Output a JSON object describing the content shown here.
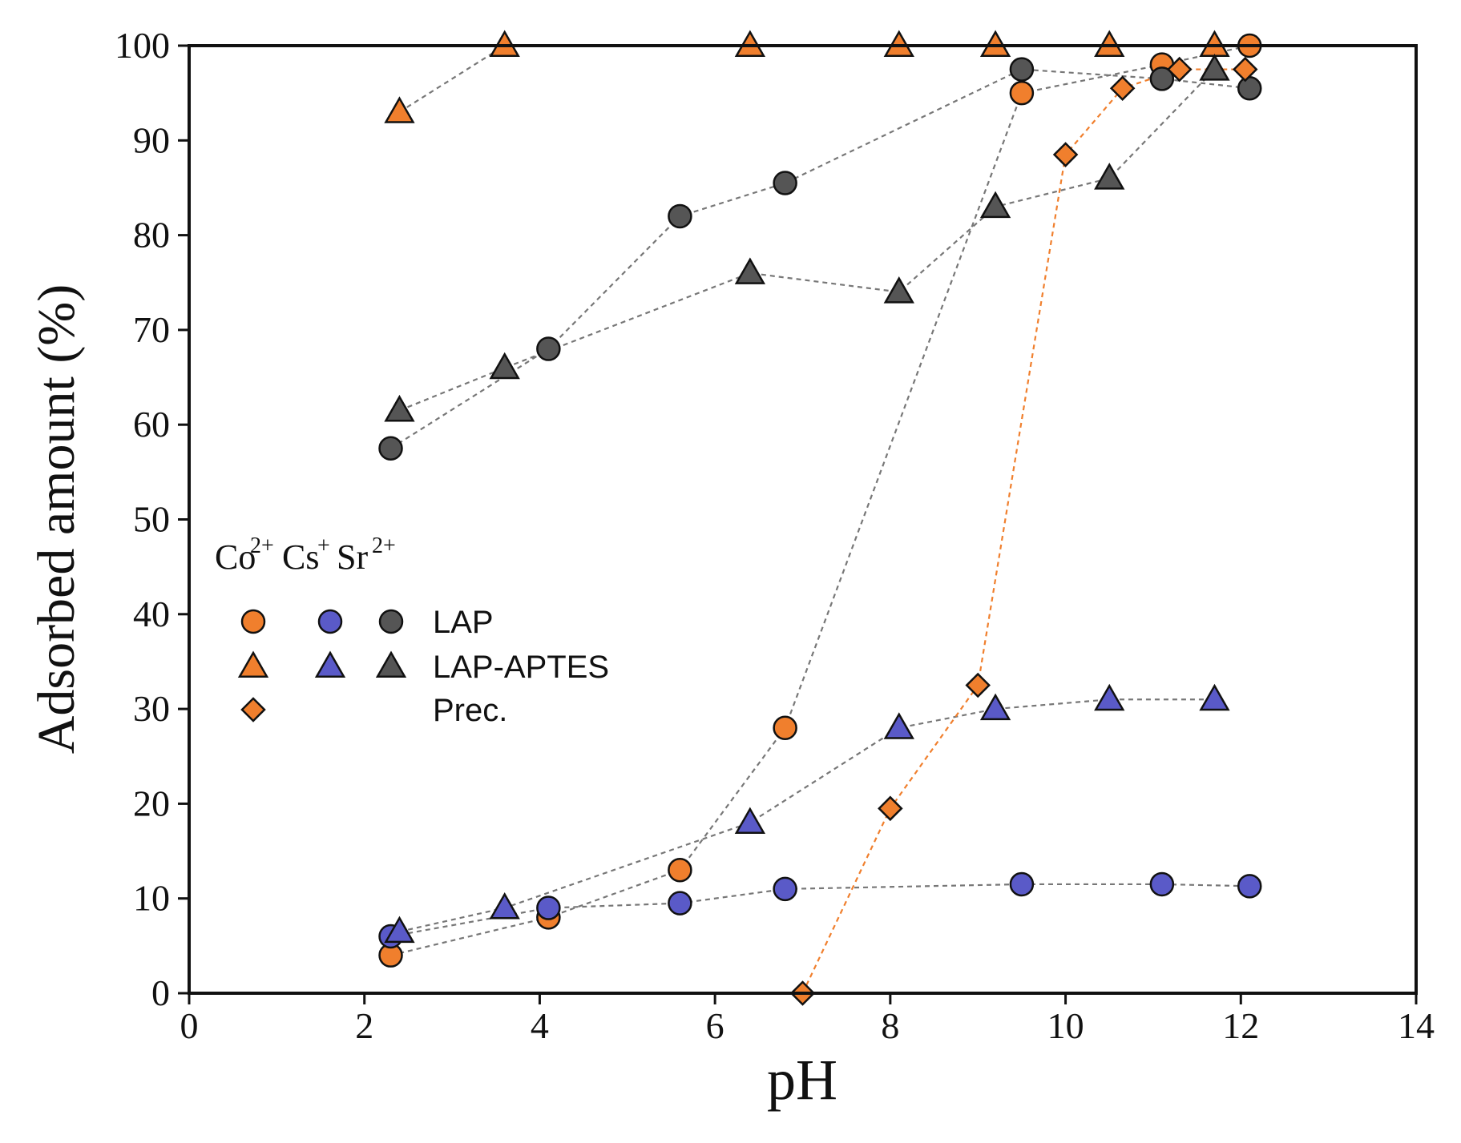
{
  "chart_data": {
    "type": "scatter",
    "title": "",
    "xlabel": "pH",
    "ylabel": "Adsorbed amount (%)",
    "xlim": [
      0,
      14
    ],
    "ylim": [
      0,
      100
    ],
    "xticks": [
      0,
      2,
      4,
      6,
      8,
      10,
      12,
      14
    ],
    "yticks": [
      0,
      10,
      20,
      30,
      40,
      50,
      60,
      70,
      80,
      90,
      100
    ],
    "reference_line": {
      "y": 100,
      "style": "dotted"
    },
    "colors": {
      "Co": "#f07f2d",
      "Cs": "#5a5ac8",
      "Sr": "#555555",
      "line_gray": "#777777",
      "line_orange": "#f07f2d"
    },
    "legend": {
      "position": "left-middle",
      "ion_headers": [
        {
          "base": "Co",
          "sup": "2+"
        },
        {
          "base": "Cs",
          "sup": "+"
        },
        {
          "base": "Sr",
          "sup": "2+"
        }
      ],
      "rows": [
        {
          "label": "LAP",
          "marker": "circle",
          "ions": [
            "Co",
            "Cs",
            "Sr"
          ]
        },
        {
          "label": "LAP-APTES",
          "marker": "triangle",
          "ions": [
            "Co",
            "Cs",
            "Sr"
          ]
        },
        {
          "label": "Prec.",
          "marker": "diamond",
          "ions": [
            "Co"
          ]
        }
      ]
    },
    "series": [
      {
        "name": "Co2+ LAP",
        "ion": "Co",
        "marker": "circle",
        "x": [
          2.3,
          4.1,
          5.6,
          6.8,
          9.5,
          11.1,
          12.1
        ],
        "y": [
          4,
          8,
          13,
          28,
          95,
          98,
          100
        ]
      },
      {
        "name": "Cs+ LAP",
        "ion": "Cs",
        "marker": "circle",
        "x": [
          2.3,
          4.1,
          5.6,
          6.8,
          9.5,
          11.1,
          12.1
        ],
        "y": [
          6,
          9,
          9.5,
          11,
          11.5,
          11.5,
          11.3
        ]
      },
      {
        "name": "Sr2+ LAP",
        "ion": "Sr",
        "marker": "circle",
        "x": [
          2.3,
          4.1,
          5.6,
          6.8,
          9.5,
          11.1,
          12.1
        ],
        "y": [
          57.5,
          68,
          82,
          85.5,
          97.5,
          96.5,
          95.5
        ]
      },
      {
        "name": "Co2+ LAP-APTES",
        "ion": "Co",
        "marker": "triangle",
        "x": [
          2.4,
          3.6,
          6.4,
          8.1,
          9.2,
          10.5,
          11.7
        ],
        "y": [
          93,
          100,
          100,
          100,
          100,
          100,
          100
        ]
      },
      {
        "name": "Cs+ LAP-APTES",
        "ion": "Cs",
        "marker": "triangle",
        "x": [
          2.4,
          3.6,
          6.4,
          8.1,
          9.2,
          10.5,
          11.7
        ],
        "y": [
          6.5,
          9,
          18,
          28,
          30,
          31,
          31
        ]
      },
      {
        "name": "Sr2+ LAP-APTES",
        "ion": "Sr",
        "marker": "triangle",
        "x": [
          2.4,
          3.6,
          6.4,
          8.1,
          9.2,
          10.5,
          11.7
        ],
        "y": [
          61.5,
          66,
          76,
          74,
          83,
          86,
          97.5
        ]
      },
      {
        "name": "Co2+ Prec.",
        "ion": "Co",
        "marker": "diamond",
        "x": [
          7.0,
          8.0,
          9.0,
          10.0,
          10.65,
          11.3,
          12.05
        ],
        "y": [
          0,
          19.5,
          32.5,
          88.5,
          95.5,
          97.5,
          97.5
        ]
      }
    ]
  }
}
